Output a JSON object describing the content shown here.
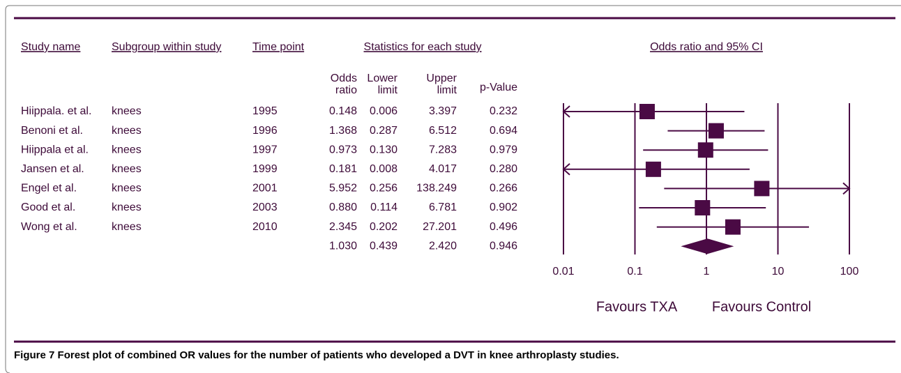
{
  "caption": {
    "label": "Figure 7",
    "text": "Forest plot of combined OR values for the number of patients who developed a DVT in knee arthroplasty studies."
  },
  "headers": {
    "study_name": "Study name",
    "subgroup": "Subgroup within study",
    "time_point": "Time point",
    "statistics": "Statistics for each study",
    "odds_ratio": "Odds ratio",
    "lower": "Lower limit",
    "upper": "Upper limit",
    "p_value": "p-Value"
  },
  "chart_data": {
    "type": "forest",
    "title": "Odds ratio and 95% CI",
    "categories": [
      "Hiippala. et al.",
      "Benoni et al.",
      "Hiippala et al.",
      "Jansen et al.",
      "Engel et al.",
      "Good et al.",
      "Wong et al.",
      null
    ],
    "subgroups": [
      "knees",
      "knees",
      "knees",
      "knees",
      "knees",
      "knees",
      "knees",
      null
    ],
    "time_points": [
      "1995",
      "1996",
      "1997",
      "1999",
      "2001",
      "2003",
      "2010",
      null
    ],
    "odds_ratio": {
      "values": [
        0.148,
        1.368,
        0.973,
        0.181,
        5.952,
        0.88,
        2.345,
        1.03
      ],
      "value_labels": [
        "0.148",
        "1.368",
        "0.973",
        "0.181",
        "5.952",
        "0.880",
        "2.345",
        "1.030"
      ]
    },
    "lower": {
      "values": [
        0.006,
        0.287,
        0.13,
        0.008,
        0.256,
        0.114,
        0.202,
        0.439
      ],
      "value_labels": [
        "0.006",
        "0.287",
        "0.130",
        "0.008",
        "0.256",
        "0.114",
        "0.202",
        "0.439"
      ]
    },
    "upper": {
      "values": [
        3.397,
        6.512,
        7.283,
        4.017,
        138.249,
        6.781,
        27.201,
        2.42
      ],
      "value_labels": [
        "3.397",
        "6.512",
        "7.283",
        "4.017",
        "138.249",
        "6.781",
        "27.201",
        "2.420"
      ]
    },
    "p_value": [
      "0.232",
      "0.694",
      "0.979",
      "0.280",
      "0.266",
      "0.902",
      "0.496",
      "0.946"
    ],
    "summary_index": 7,
    "xlim": [
      0.01,
      100
    ],
    "xticks": [
      0.01,
      0.1,
      1,
      10,
      100
    ],
    "log_x": true,
    "favours_left": "Favours TXA",
    "favours_right": "Favours Control",
    "color": "#4a0a44"
  }
}
